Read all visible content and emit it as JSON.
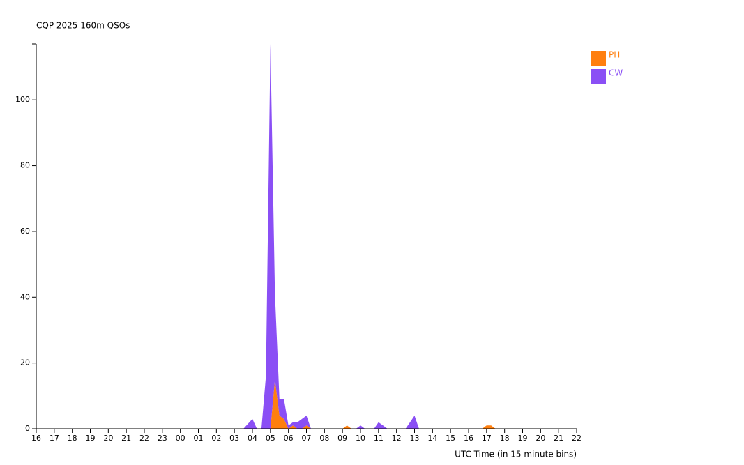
{
  "chart_data": {
    "type": "stacked-area",
    "title": "CQP 2025 160m QSOs",
    "x_label": "UTC Time (in 15 minute bins)",
    "x": [
      16,
      27.5,
      28,
      28.25,
      28.5,
      28.75,
      29,
      29.25,
      29.5,
      29.75,
      30,
      30.25,
      30.5,
      30.75,
      31,
      31.25,
      33,
      33.25,
      33.5,
      33.75,
      34,
      34.25,
      34.75,
      35,
      35.25,
      35.5,
      36.5,
      36.75,
      37,
      37.25,
      40.75,
      41,
      41.25,
      41.5,
      46
    ],
    "series": [
      {
        "name": "PH",
        "color": "#ff7f0e",
        "values": [
          0,
          0,
          0,
          0,
          0,
          0,
          0,
          15,
          4,
          3,
          0,
          1,
          0,
          0,
          1,
          0,
          0,
          1,
          0,
          0,
          0,
          0,
          0,
          0,
          0,
          0,
          0,
          0,
          0,
          0,
          0,
          1,
          1,
          0,
          0
        ]
      },
      {
        "name": "CW",
        "color": "#8a4ff5",
        "values": [
          0,
          0,
          3,
          0,
          0,
          16,
          117,
          26,
          5,
          6,
          1,
          1,
          2,
          3,
          3,
          0,
          0,
          0,
          0,
          0,
          1,
          0,
          0,
          2,
          1,
          0,
          0,
          2,
          4,
          0,
          0,
          0,
          0,
          0,
          0
        ]
      }
    ],
    "xlim": [
      16,
      46
    ],
    "xticks": [
      {
        "value": 16,
        "label": "16"
      },
      {
        "value": 17,
        "label": "17"
      },
      {
        "value": 18,
        "label": "18"
      },
      {
        "value": 19,
        "label": "19"
      },
      {
        "value": 20,
        "label": "20"
      },
      {
        "value": 21,
        "label": "21"
      },
      {
        "value": 22,
        "label": "22"
      },
      {
        "value": 23,
        "label": "23"
      },
      {
        "value": 24,
        "label": "00"
      },
      {
        "value": 25,
        "label": "01"
      },
      {
        "value": 26,
        "label": "02"
      },
      {
        "value": 27,
        "label": "03"
      },
      {
        "value": 28,
        "label": "04"
      },
      {
        "value": 29,
        "label": "05"
      },
      {
        "value": 30,
        "label": "06"
      },
      {
        "value": 31,
        "label": "07"
      },
      {
        "value": 32,
        "label": "08"
      },
      {
        "value": 33,
        "label": "09"
      },
      {
        "value": 34,
        "label": "10"
      },
      {
        "value": 35,
        "label": "11"
      },
      {
        "value": 36,
        "label": "12"
      },
      {
        "value": 37,
        "label": "13"
      },
      {
        "value": 38,
        "label": "14"
      },
      {
        "value": 39,
        "label": "15"
      },
      {
        "value": 40,
        "label": "16"
      },
      {
        "value": 41,
        "label": "17"
      },
      {
        "value": 42,
        "label": "18"
      },
      {
        "value": 43,
        "label": "19"
      },
      {
        "value": 44,
        "label": "20"
      },
      {
        "value": 45,
        "label": "21"
      },
      {
        "value": 46,
        "label": "22"
      }
    ],
    "ylim": [
      0,
      117
    ],
    "yticks": [
      0,
      20,
      40,
      60,
      80,
      100
    ],
    "grid": false
  }
}
